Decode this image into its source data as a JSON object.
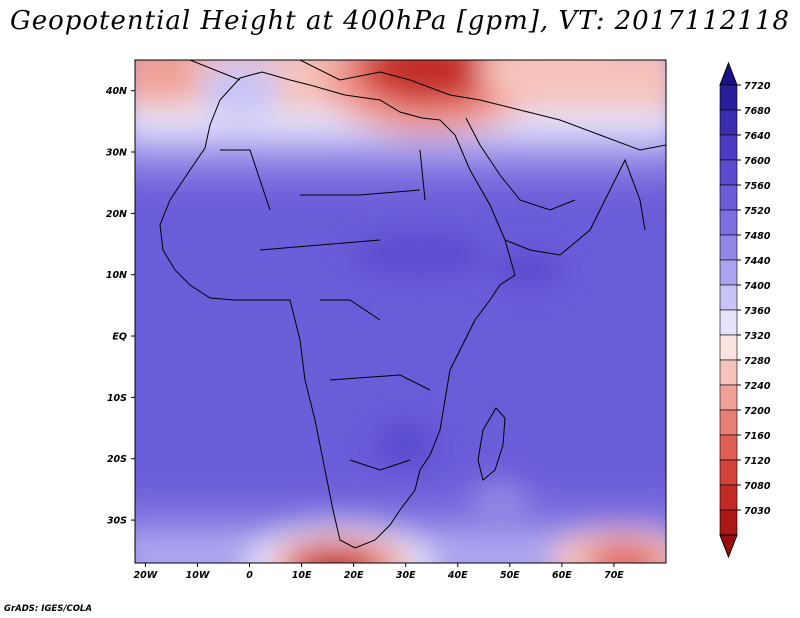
{
  "title": "Geopotential Height at 400hPa [gpm], VT: 2017112118",
  "credit": "GrADS: IGES/COLA",
  "map": {
    "projection": "latlon",
    "lon_range": [
      -22,
      80
    ],
    "lat_range": [
      -37,
      45
    ],
    "lat_ticks": [
      {
        "lat": 40,
        "label": "40N"
      },
      {
        "lat": 30,
        "label": "30N"
      },
      {
        "lat": 20,
        "label": "20N"
      },
      {
        "lat": 10,
        "label": "10N"
      },
      {
        "lat": 0,
        "label": "EQ"
      },
      {
        "lat": -10,
        "label": "10S"
      },
      {
        "lat": -20,
        "label": "20S"
      },
      {
        "lat": -30,
        "label": "30S"
      }
    ],
    "lon_ticks": [
      {
        "lon": -20,
        "label": "20W"
      },
      {
        "lon": -10,
        "label": "10W"
      },
      {
        "lon": 0,
        "label": "0"
      },
      {
        "lon": 10,
        "label": "10E"
      },
      {
        "lon": 20,
        "label": "20E"
      },
      {
        "lon": 30,
        "label": "30E"
      },
      {
        "lon": 40,
        "label": "40E"
      },
      {
        "lon": 50,
        "label": "50E"
      },
      {
        "lon": 60,
        "label": "60E"
      },
      {
        "lon": 70,
        "label": "70E"
      }
    ]
  },
  "colorbar": {
    "levels": [
      "7720",
      "7680",
      "7640",
      "7600",
      "7560",
      "7520",
      "7480",
      "7440",
      "7400",
      "7360",
      "7320",
      "7280",
      "7240",
      "7200",
      "7160",
      "7120",
      "7080",
      "7030"
    ],
    "colors": [
      "#2a1f9a",
      "#3a2fb0",
      "#4a3cc2",
      "#5a4ccf",
      "#6a5dd8",
      "#7b70df",
      "#9289e6",
      "#aba4ee",
      "#c8c4f5",
      "#e6e4fb",
      "#fbe3e0",
      "#f6c3bc",
      "#f0a197",
      "#e87f74",
      "#df5f55",
      "#d3423b",
      "#c22a26",
      "#ab1816"
    ],
    "top_cap_color": "#1a128a",
    "bottom_cap_color": "#9a0f0e"
  }
}
